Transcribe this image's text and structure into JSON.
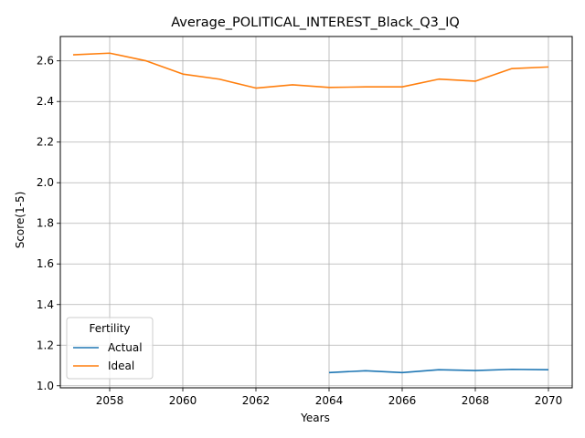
{
  "chart_data": {
    "type": "line",
    "title": "Average_POLITICAL_INTEREST_Black_Q3_IQ",
    "xlabel": "Years",
    "ylabel": "Score(1-5)",
    "xlim": [
      2056.65,
      2070.65
    ],
    "ylim": [
      0.99,
      2.72
    ],
    "xticks": [
      2058,
      2060,
      2062,
      2064,
      2066,
      2068,
      2070
    ],
    "yticks": [
      1.0,
      1.2,
      1.4,
      1.6,
      1.8,
      2.0,
      2.2,
      2.4,
      2.6
    ],
    "xtick_labels": [
      "2058",
      "2060",
      "2062",
      "2064",
      "2066",
      "2068",
      "2070"
    ],
    "ytick_labels": [
      "1.0",
      "1.2",
      "1.4",
      "1.6",
      "1.8",
      "2.0",
      "2.2",
      "2.4",
      "2.6"
    ],
    "grid": true,
    "legend": {
      "title": "Fertility",
      "placement": "lower-left"
    },
    "series": [
      {
        "name": "Actual",
        "color": "#1f77b4",
        "x": [
          2064,
          2065,
          2066,
          2067,
          2068,
          2069,
          2070
        ],
        "y": [
          1.065,
          1.074,
          1.065,
          1.079,
          1.075,
          1.081,
          1.079
        ]
      },
      {
        "name": "Ideal",
        "color": "#ff7f0e",
        "x": [
          2057,
          2058,
          2059,
          2060,
          2061,
          2062,
          2063,
          2064,
          2065,
          2066,
          2067,
          2068,
          2069,
          2070
        ],
        "y": [
          2.63,
          2.638,
          2.6,
          2.535,
          2.51,
          2.466,
          2.482,
          2.469,
          2.472,
          2.472,
          2.51,
          2.5,
          2.562,
          2.57
        ]
      }
    ]
  }
}
